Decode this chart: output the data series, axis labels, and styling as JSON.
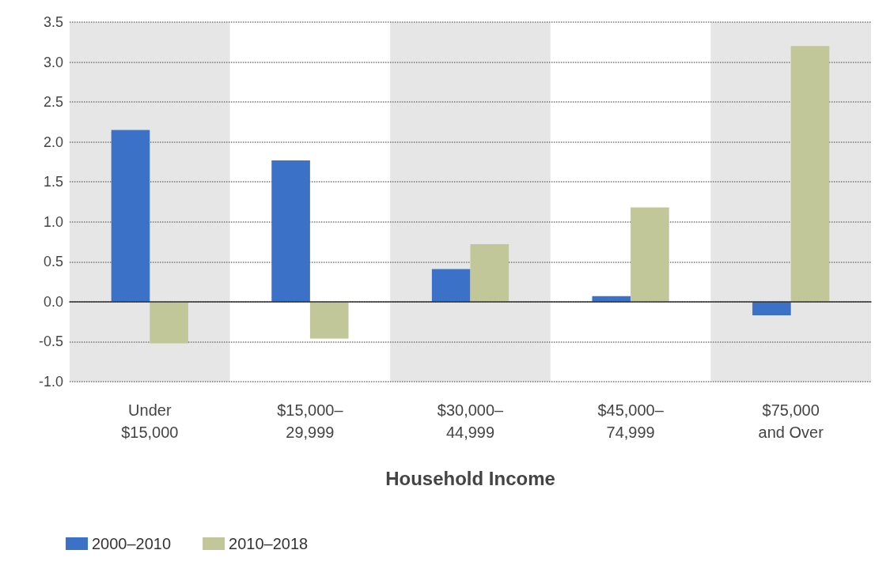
{
  "chart_data": {
    "type": "bar",
    "xlabel": "Household Income",
    "categories": [
      "Under\n$15,000",
      "$15,000–\n29,999",
      "$30,000–\n44,999",
      "$45,000–\n74,999",
      "$75,000\nand Over"
    ],
    "series": [
      {
        "name": "2000–2010",
        "color": "#3b72c8",
        "values": [
          2.15,
          1.77,
          0.41,
          0.07,
          -0.17
        ]
      },
      {
        "name": "2010–2018",
        "color": "#c2c79a",
        "values": [
          -0.52,
          -0.46,
          0.72,
          1.18,
          3.2
        ]
      }
    ],
    "ylim": [
      -1.0,
      3.5
    ],
    "yticks": [
      {
        "value": -1,
        "label": "-1.0"
      },
      {
        "value": -0.5,
        "label": "-0.5"
      },
      {
        "value": 0,
        "label": "0.0"
      },
      {
        "value": 0.5,
        "label": "0.5"
      },
      {
        "value": 1,
        "label": "1.0"
      },
      {
        "value": 1.5,
        "label": "1.5"
      },
      {
        "value": 2,
        "label": "2.0"
      },
      {
        "value": 2.5,
        "label": "2.5"
      },
      {
        "value": 3,
        "label": "3.0"
      },
      {
        "value": 3.5,
        "label": "3.5"
      }
    ],
    "grid": "y",
    "legend": "bottom left",
    "bands": [
      {
        "axis": "x",
        "from": "Under\n$15,000",
        "to": "Under\n$15,000",
        "color": "#e6e6e6"
      },
      {
        "axis": "x",
        "from": "$30,000–\n44,999",
        "to": "$30,000–\n44,999",
        "color": "#e6e6e6"
      },
      {
        "axis": "x",
        "from": "$75,000\nand Over",
        "to": "$75,000\nand Over",
        "color": "#e6e6e6"
      }
    ]
  }
}
